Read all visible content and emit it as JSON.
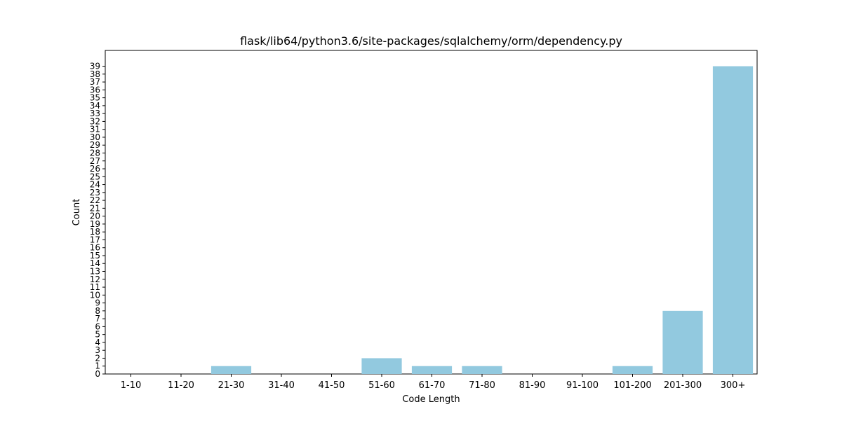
{
  "chart_data": {
    "type": "bar",
    "title": "flask/lib64/python3.6/site-packages/sqlalchemy/orm/dependency.py",
    "xlabel": "Code Length",
    "ylabel": "Count",
    "categories": [
      "1-10",
      "11-20",
      "21-30",
      "31-40",
      "41-50",
      "51-60",
      "61-70",
      "71-80",
      "81-90",
      "91-100",
      "101-200",
      "201-300",
      "300+"
    ],
    "values": [
      0,
      0,
      1,
      0,
      0,
      2,
      1,
      1,
      0,
      0,
      1,
      8,
      39
    ],
    "ylim": [
      0,
      41
    ],
    "yticks": [
      0,
      1,
      2,
      3,
      4,
      5,
      6,
      7,
      8,
      9,
      10,
      11,
      12,
      13,
      14,
      15,
      16,
      17,
      18,
      19,
      20,
      21,
      22,
      23,
      24,
      25,
      26,
      27,
      28,
      29,
      30,
      31,
      32,
      33,
      34,
      35,
      36,
      37,
      38,
      39
    ],
    "bar_color": "#92c9df",
    "grid": false,
    "legend": "none"
  }
}
